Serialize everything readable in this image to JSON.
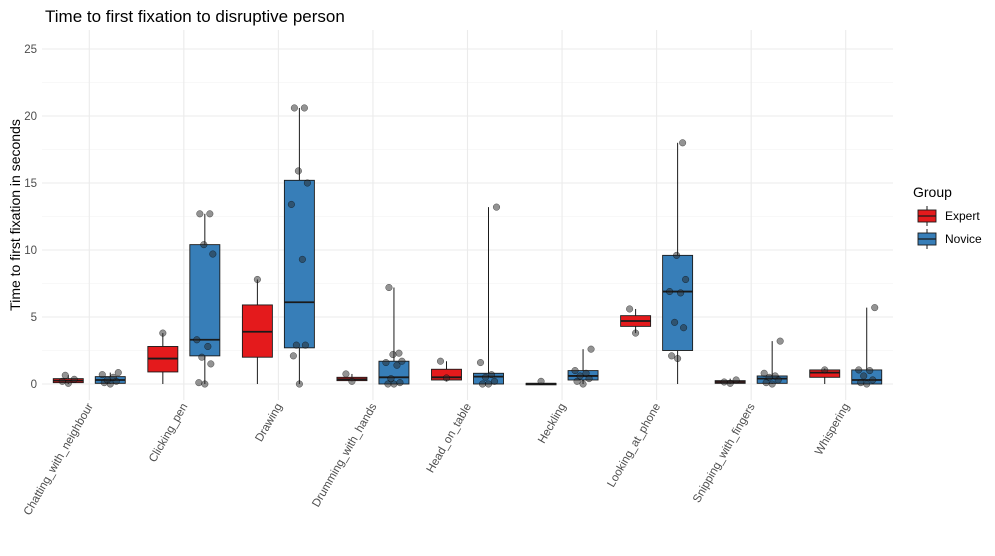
{
  "chart_data": {
    "type": "boxplot",
    "title": "Time to first fixation to disruptive person",
    "xlabel": "",
    "ylabel": "Time to first fixation in seconds",
    "ylim": [
      0,
      25
    ],
    "yticks": [
      0,
      5,
      10,
      15,
      20,
      25
    ],
    "grid": true,
    "legend": {
      "title": "Group",
      "position": "right",
      "entries": [
        {
          "label": "Expert",
          "color": "#E41A1C"
        },
        {
          "label": "Novice",
          "color": "#377EB8"
        }
      ]
    },
    "categories": [
      "Chatting_with_neighbour",
      "Clicking_pen",
      "Drawing",
      "Drumming_with_hands",
      "Head_on_table",
      "Heckling",
      "Looking_at_phone",
      "Snipping_with_fingers",
      "Whispering"
    ],
    "series": [
      {
        "name": "Expert",
        "color": "#E41A1C",
        "boxes": [
          {
            "category": "Chatting_with_neighbour",
            "min": 0.0,
            "q1": 0.1,
            "median": 0.25,
            "q3": 0.4,
            "max": 0.65,
            "points": [
              0.05,
              0.2,
              0.35,
              0.65
            ]
          },
          {
            "category": "Clicking_pen",
            "min": 0.0,
            "q1": 0.9,
            "median": 1.9,
            "q3": 2.8,
            "max": 3.8,
            "points": [
              3.8
            ]
          },
          {
            "category": "Drawing",
            "min": 0.0,
            "q1": 2.0,
            "median": 3.9,
            "q3": 5.9,
            "max": 7.8,
            "points": [
              7.8
            ]
          },
          {
            "category": "Drumming_with_hands",
            "min": 0.2,
            "q1": 0.25,
            "median": 0.35,
            "q3": 0.5,
            "max": 0.75,
            "points": [
              0.2,
              0.75
            ]
          },
          {
            "category": "Head_on_table",
            "min": 0.2,
            "q1": 0.3,
            "median": 0.5,
            "q3": 1.1,
            "max": 1.7,
            "points": [
              0.45,
              1.7
            ]
          },
          {
            "category": "Heckling",
            "min": 0.0,
            "q1": 0.0,
            "median": 0.02,
            "q3": 0.05,
            "max": 0.1,
            "points": [
              0.2
            ]
          },
          {
            "category": "Looking_at_phone",
            "min": 3.8,
            "q1": 4.3,
            "median": 4.7,
            "q3": 5.1,
            "max": 5.6,
            "points": [
              3.8,
              5.6
            ]
          },
          {
            "category": "Snipping_with_fingers",
            "min": 0.0,
            "q1": 0.05,
            "median": 0.15,
            "q3": 0.25,
            "max": 0.4,
            "points": [
              0.05,
              0.15,
              0.3
            ]
          },
          {
            "category": "Whispering",
            "min": 0.0,
            "q1": 0.5,
            "median": 0.85,
            "q3": 1.05,
            "max": 1.15,
            "points": [
              1.05
            ]
          }
        ]
      },
      {
        "name": "Novice",
        "color": "#377EB8",
        "boxes": [
          {
            "category": "Chatting_with_neighbour",
            "min": 0.0,
            "q1": 0.05,
            "median": 0.3,
            "q3": 0.55,
            "max": 0.85,
            "points": [
              0.0,
              0.1,
              0.2,
              0.3,
              0.5,
              0.7,
              0.85
            ]
          },
          {
            "category": "Clicking_pen",
            "min": 0.0,
            "q1": 2.1,
            "median": 3.3,
            "q3": 10.4,
            "max": 12.7,
            "points": [
              0.0,
              0.1,
              1.5,
              2.0,
              2.8,
              3.3,
              9.7,
              10.4,
              12.7,
              12.7
            ]
          },
          {
            "category": "Drawing",
            "min": 0.0,
            "q1": 2.7,
            "median": 6.1,
            "q3": 15.2,
            "max": 20.6,
            "points": [
              0.0,
              2.1,
              2.9,
              2.9,
              9.3,
              13.4,
              15.0,
              15.9,
              20.6,
              20.6
            ]
          },
          {
            "category": "Drumming_with_hands",
            "min": 0.0,
            "q1": 0.0,
            "median": 0.5,
            "q3": 1.7,
            "max": 7.2,
            "points": [
              0.0,
              0.0,
              0.1,
              0.4,
              1.4,
              1.6,
              1.7,
              2.2,
              2.3,
              7.2
            ]
          },
          {
            "category": "Head_on_table",
            "min": 0.0,
            "q1": 0.0,
            "median": 0.55,
            "q3": 0.8,
            "max": 13.2,
            "points": [
              0.0,
              0.0,
              0.2,
              0.5,
              0.7,
              1.6,
              13.2
            ]
          },
          {
            "category": "Heckling",
            "min": 0.0,
            "q1": 0.3,
            "median": 0.6,
            "q3": 1.0,
            "max": 2.6,
            "points": [
              0.0,
              0.2,
              0.4,
              0.6,
              0.8,
              1.0,
              2.6
            ]
          },
          {
            "category": "Looking_at_phone",
            "min": 0.0,
            "q1": 2.5,
            "median": 6.9,
            "q3": 9.6,
            "max": 18.0,
            "points": [
              1.9,
              2.1,
              4.2,
              4.6,
              6.8,
              6.9,
              7.8,
              9.6,
              18.0
            ]
          },
          {
            "category": "Snipping_with_fingers",
            "min": 0.0,
            "q1": 0.05,
            "median": 0.4,
            "q3": 0.6,
            "max": 3.2,
            "points": [
              0.0,
              0.1,
              0.3,
              0.5,
              0.6,
              0.8,
              3.2
            ]
          },
          {
            "category": "Whispering",
            "min": 0.0,
            "q1": 0.0,
            "median": 0.3,
            "q3": 1.05,
            "max": 5.7,
            "points": [
              0.0,
              0.1,
              0.3,
              0.6,
              1.0,
              1.05,
              5.7
            ]
          }
        ]
      }
    ]
  }
}
